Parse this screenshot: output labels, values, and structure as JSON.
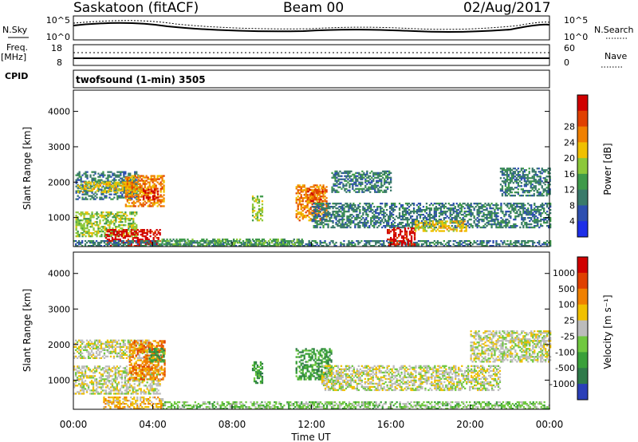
{
  "header": {
    "station": "Saskatoon (fitACF)",
    "beam": "Beam 00",
    "date": "02/Aug/2017"
  },
  "summary": {
    "nsky_label": "N.Sky",
    "nsky_ticks": [
      "10^5",
      "10^0"
    ],
    "nsearch_label": "N.Search",
    "nsearch_ticks": [
      "10^5",
      "10^0"
    ],
    "freq_label": "Freq.",
    "freq_unit": "[MHz]",
    "freq_ticks": [
      "18",
      "8"
    ],
    "nave_label": "Nave",
    "nave_ticks": [
      "60",
      "0"
    ],
    "cpid_label": "CPID",
    "program": "twofsound (1-min) 3505"
  },
  "x_axis": {
    "title": "Time UT",
    "ticks": [
      "00:00",
      "04:00",
      "08:00",
      "12:00",
      "16:00",
      "20:00",
      "00:00"
    ]
  },
  "chart_data": [
    {
      "type": "heatmap",
      "panel": "power",
      "ylabel": "Slant Range [km]",
      "yticks": [
        1000,
        2000,
        3000,
        4000
      ],
      "ylim": [
        180,
        4600
      ],
      "xlim_hours": [
        0,
        24
      ],
      "colorbar": {
        "label": "Power [dB]",
        "ticks": [
          "4",
          "8",
          "12",
          "16",
          "20",
          "24",
          "28"
        ],
        "colors": [
          "#1d2fe8",
          "#2d4fb0",
          "#3a7a6a",
          "#3f9a4a",
          "#8cc83a",
          "#f0c000",
          "#f08000",
          "#e04000",
          "#d00000"
        ]
      },
      "blobs": [
        {
          "t0": 0.1,
          "t1": 3.3,
          "r0": 1500,
          "r1": 2300,
          "level": 2
        },
        {
          "t0": 0.2,
          "t1": 3.6,
          "r0": 1700,
          "r1": 2000,
          "level": 5
        },
        {
          "t0": 2.6,
          "t1": 4.6,
          "r0": 1300,
          "r1": 2200,
          "level": 6
        },
        {
          "t0": 3.5,
          "t1": 4.3,
          "r0": 1500,
          "r1": 1800,
          "level": 8
        },
        {
          "t0": 0.1,
          "t1": 3.2,
          "r0": 450,
          "r1": 1150,
          "level": 4
        },
        {
          "t0": 1.6,
          "t1": 4.4,
          "r0": 180,
          "r1": 650,
          "level": 8
        },
        {
          "t0": 0.0,
          "t1": 24.0,
          "r0": 180,
          "r1": 320,
          "level": 2
        },
        {
          "t0": 4.2,
          "t1": 11.5,
          "r0": 180,
          "r1": 400,
          "level": 3
        },
        {
          "t0": 9.0,
          "t1": 9.5,
          "r0": 900,
          "r1": 1600,
          "level": 4
        },
        {
          "t0": 11.2,
          "t1": 12.8,
          "r0": 900,
          "r1": 1900,
          "level": 6
        },
        {
          "t0": 11.8,
          "t1": 12.6,
          "r0": 1400,
          "r1": 1800,
          "level": 7
        },
        {
          "t0": 12.0,
          "t1": 24.0,
          "r0": 700,
          "r1": 1400,
          "level": 2
        },
        {
          "t0": 13.0,
          "t1": 16.0,
          "r0": 1700,
          "r1": 2300,
          "level": 2
        },
        {
          "t0": 15.8,
          "t1": 17.2,
          "r0": 180,
          "r1": 700,
          "level": 8
        },
        {
          "t0": 17.2,
          "t1": 19.8,
          "r0": 600,
          "r1": 900,
          "level": 5
        },
        {
          "t0": 21.5,
          "t1": 24.0,
          "r0": 1600,
          "r1": 2400,
          "level": 2
        }
      ]
    },
    {
      "type": "heatmap",
      "panel": "velocity",
      "ylabel": "Slant Range [km]",
      "yticks": [
        1000,
        2000,
        3000,
        4000
      ],
      "ylim": [
        180,
        4600
      ],
      "xlim_hours": [
        0,
        24
      ],
      "colorbar": {
        "label": "Velocity [m s⁻¹]",
        "ticks": [
          "1000",
          "500",
          "100",
          "25",
          "-25",
          "-100",
          "-500",
          "-1000"
        ],
        "colors": [
          "#2a3fb8",
          "#2f7a4a",
          "#3aa03a",
          "#70c840",
          "#bcbcbc",
          "#f0c000",
          "#f08000",
          "#e04000",
          "#d00000"
        ]
      },
      "blobs": [
        {
          "t0": 0.0,
          "t1": 4.0,
          "r0": 1600,
          "r1": 2100,
          "level": 4
        },
        {
          "t0": 0.0,
          "t1": 4.4,
          "r0": 600,
          "r1": 1400,
          "level": 4
        },
        {
          "t0": 2.8,
          "t1": 4.6,
          "r0": 1000,
          "r1": 2100,
          "level": 6
        },
        {
          "t0": 3.8,
          "t1": 4.6,
          "r0": 1500,
          "r1": 1900,
          "level": 2
        },
        {
          "t0": 1.5,
          "t1": 4.5,
          "r0": 180,
          "r1": 500,
          "level": 5
        },
        {
          "t0": 4.5,
          "t1": 24.0,
          "r0": 180,
          "r1": 380,
          "level": 3
        },
        {
          "t0": 11.2,
          "t1": 13.0,
          "r0": 1000,
          "r1": 1900,
          "level": 2
        },
        {
          "t0": 9.0,
          "t1": 9.5,
          "r0": 900,
          "r1": 1500,
          "level": 2
        },
        {
          "t0": 12.5,
          "t1": 21.5,
          "r0": 700,
          "r1": 1400,
          "level": 4
        },
        {
          "t0": 20.0,
          "t1": 24.0,
          "r0": 1500,
          "r1": 2400,
          "level": 4
        }
      ]
    }
  ]
}
